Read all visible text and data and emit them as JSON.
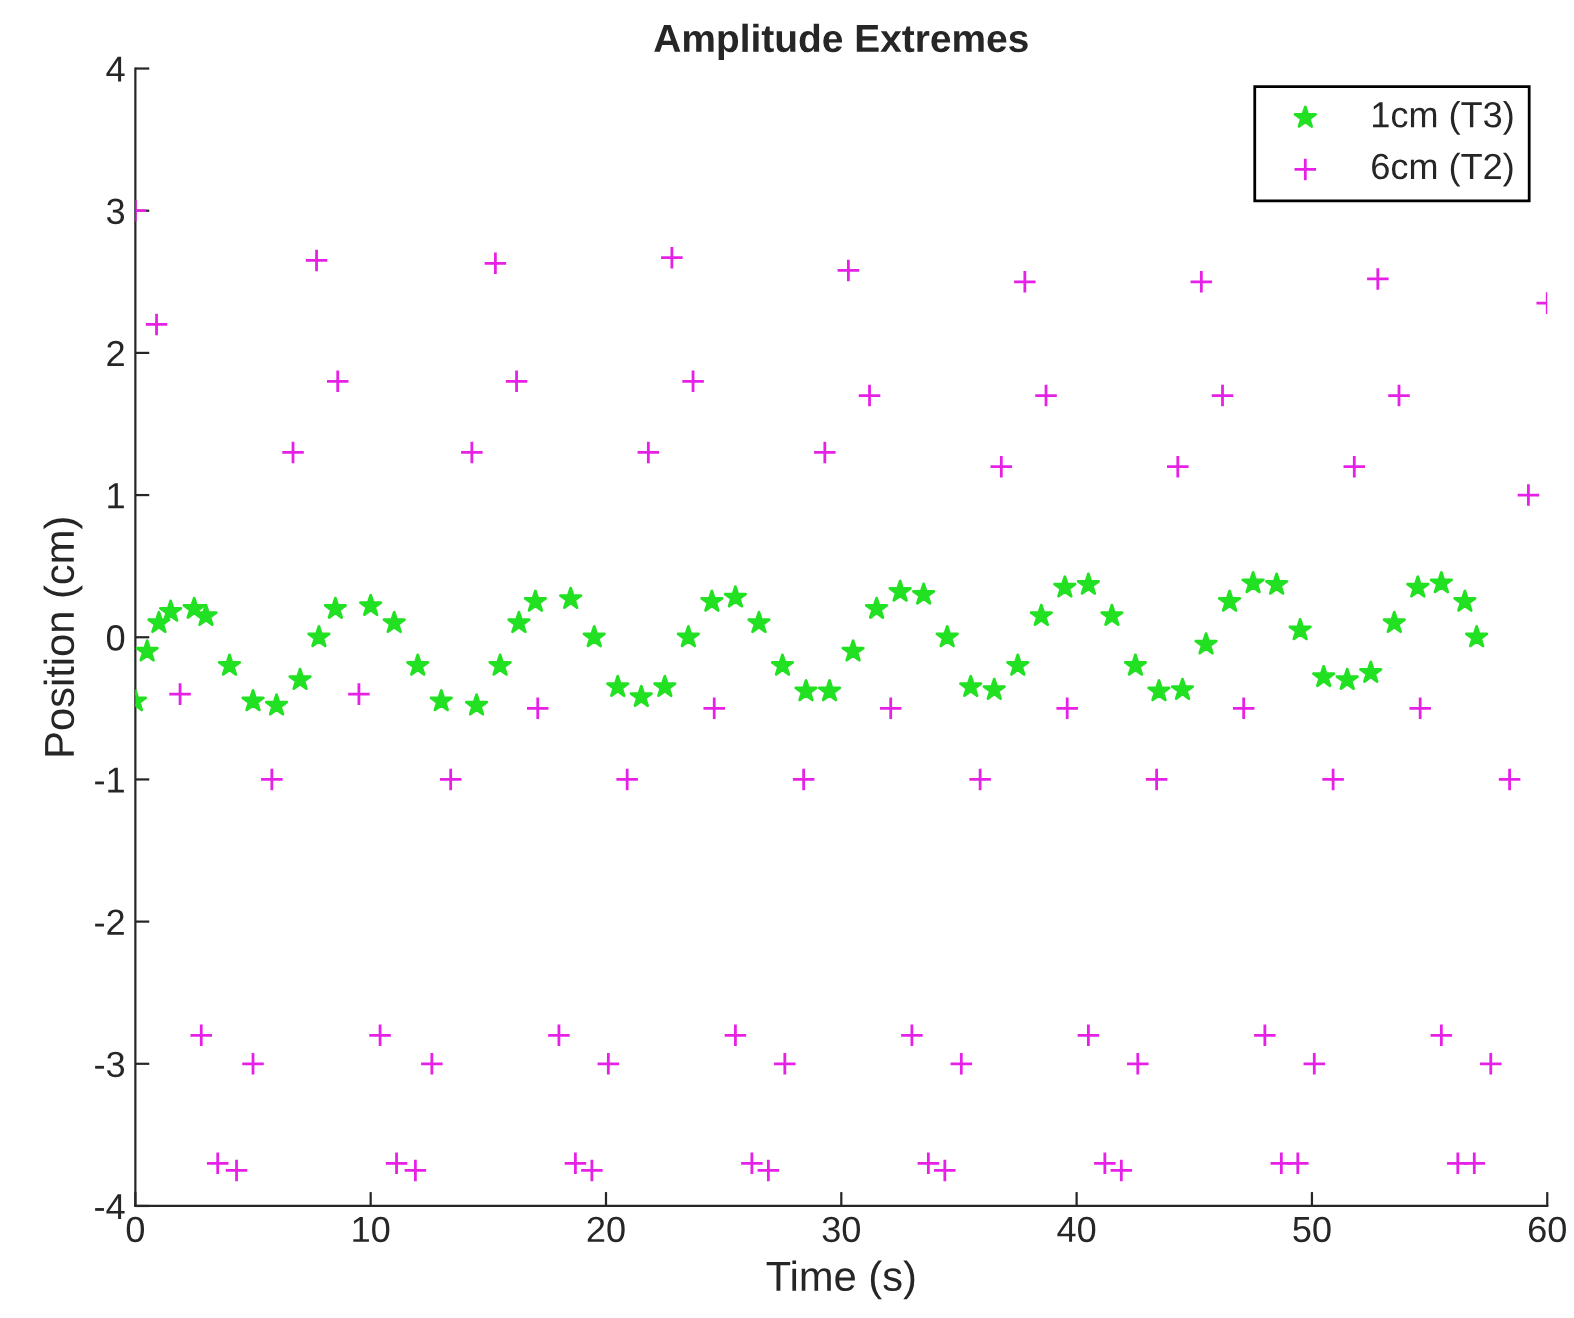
{
  "chart_data": {
    "type": "scatter",
    "title": "Amplitude Extremes",
    "xlabel": "Time (s)",
    "ylabel": "Position (cm)",
    "xlim": [
      0,
      60
    ],
    "xticks": [
      0,
      10,
      20,
      30,
      40,
      50,
      60
    ],
    "ylim": [
      -4,
      4
    ],
    "yticks": [
      -4,
      -3,
      -2,
      -1,
      0,
      1,
      2,
      3,
      4
    ],
    "grid": false,
    "legend": "top right",
    "series": [
      {
        "name": "1cm (T3)",
        "color": "#22e022",
        "marker": "star",
        "x": [
          0,
          0.5,
          1.0,
          1.5,
          2.5,
          3.0,
          4.0,
          5.0,
          6.0,
          7.0,
          7.8,
          8.5,
          10.0,
          11.0,
          12.0,
          13.0,
          14.5,
          15.5,
          16.3,
          17.0,
          18.5,
          19.5,
          20.5,
          21.5,
          22.5,
          23.5,
          24.5,
          25.5,
          26.5,
          27.5,
          28.5,
          29.5,
          30.5,
          31.5,
          32.5,
          33.5,
          34.5,
          35.5,
          36.5,
          37.5,
          38.5,
          39.5,
          40.5,
          41.5,
          42.5,
          43.5,
          44.5,
          45.5,
          46.5,
          47.5,
          48.5,
          49.5,
          50.5,
          51.5,
          52.5,
          53.5,
          54.5,
          55.5,
          56.5,
          57.0
        ],
        "values": [
          -0.45,
          -0.1,
          0.1,
          0.18,
          0.2,
          0.15,
          -0.2,
          -0.45,
          -0.48,
          -0.3,
          0.0,
          0.2,
          0.22,
          0.1,
          -0.2,
          -0.45,
          -0.48,
          -0.2,
          0.1,
          0.25,
          0.27,
          0.0,
          -0.35,
          -0.42,
          -0.35,
          0.0,
          0.25,
          0.28,
          0.1,
          -0.2,
          -0.38,
          -0.38,
          -0.1,
          0.2,
          0.32,
          0.3,
          0.0,
          -0.35,
          -0.37,
          -0.2,
          0.15,
          0.35,
          0.37,
          0.15,
          -0.2,
          -0.38,
          -0.37,
          -0.05,
          0.25,
          0.38,
          0.37,
          0.05,
          -0.28,
          -0.3,
          -0.25,
          0.1,
          0.35,
          0.38,
          0.25,
          0.0
        ]
      },
      {
        "name": "6cm (T2)",
        "color": "#e620e6",
        "marker": "cross",
        "x": [
          0,
          0.9,
          1.9,
          2.8,
          3.5,
          4.3,
          5.0,
          5.8,
          6.7,
          7.7,
          8.6,
          9.5,
          10.4,
          11.1,
          11.9,
          12.6,
          13.4,
          14.3,
          15.3,
          16.2,
          17.1,
          18.0,
          18.7,
          19.4,
          20.1,
          20.9,
          21.8,
          22.8,
          23.7,
          24.6,
          25.5,
          26.2,
          26.9,
          27.6,
          28.4,
          29.3,
          30.3,
          31.2,
          32.1,
          33.0,
          33.7,
          34.4,
          35.1,
          35.9,
          36.8,
          37.8,
          38.7,
          39.6,
          40.5,
          41.2,
          41.9,
          42.6,
          43.4,
          44.3,
          45.3,
          46.2,
          47.1,
          48.0,
          48.7,
          49.4,
          50.1,
          50.9,
          51.8,
          52.8,
          53.7,
          54.6,
          55.5,
          56.2,
          56.9,
          57.6,
          58.4,
          59.2,
          60.0
        ],
        "values": [
          3.0,
          2.2,
          -0.4,
          -2.8,
          -3.7,
          -3.75,
          -3.0,
          -1.0,
          1.3,
          2.65,
          1.8,
          -0.4,
          -2.8,
          -3.7,
          -3.75,
          -3.0,
          -1.0,
          1.3,
          2.63,
          1.8,
          -0.5,
          -2.8,
          -3.7,
          -3.75,
          -3.0,
          -1.0,
          1.3,
          2.67,
          1.8,
          -0.5,
          -2.8,
          -3.7,
          -3.75,
          -3.0,
          -1.0,
          1.3,
          2.58,
          1.7,
          -0.5,
          -2.8,
          -3.7,
          -3.75,
          -3.0,
          -1.0,
          1.2,
          2.5,
          1.7,
          -0.5,
          -2.8,
          -3.7,
          -3.75,
          -3.0,
          -1.0,
          1.2,
          2.5,
          1.7,
          -0.5,
          -2.8,
          -3.7,
          -3.7,
          -3.0,
          -1.0,
          1.2,
          2.52,
          1.7,
          -0.5,
          -2.8,
          -3.7,
          -3.7,
          -3.0,
          -1.0,
          1.0,
          2.35
        ]
      }
    ]
  }
}
